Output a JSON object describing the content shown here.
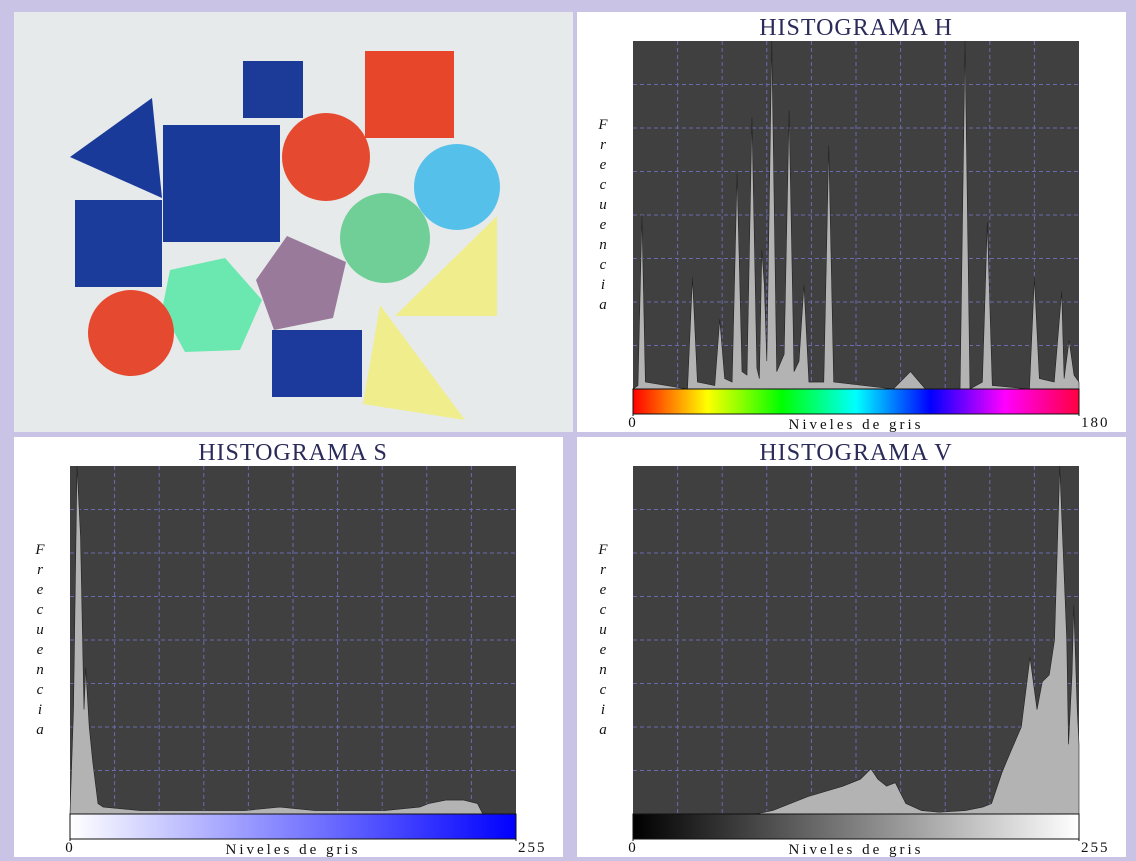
{
  "chart_data": [
    {
      "type": "area",
      "title": "HISTOGRAMA H",
      "x_label": "Niveles de gris",
      "y_label": "Frecuencia",
      "x": [
        0,
        2,
        3.6,
        5,
        22,
        24,
        26,
        33,
        35,
        37,
        40,
        42,
        44,
        46,
        48,
        50,
        51,
        52,
        53,
        54,
        56,
        58,
        61,
        63,
        65,
        67,
        69,
        71,
        77,
        79,
        81,
        105,
        112,
        118,
        132,
        134,
        136,
        141,
        143,
        145,
        160,
        162,
        164,
        170,
        173,
        174,
        176,
        178,
        180
      ],
      "values": [
        0,
        1,
        50,
        2,
        0,
        32,
        2,
        1,
        20,
        3,
        2,
        62,
        5,
        4,
        78,
        6,
        3,
        40,
        30,
        8,
        100,
        5,
        10,
        80,
        5,
        8,
        30,
        2,
        2,
        70,
        2,
        0,
        5,
        0,
        0,
        100,
        0,
        2,
        48,
        1,
        0,
        32,
        3,
        2,
        28,
        3,
        14,
        4,
        2
      ],
      "xlim": [
        0,
        180
      ],
      "xticks": [
        0,
        180
      ],
      "ylim": [
        0,
        100
      ],
      "grid": true,
      "color": "#b3b3b3",
      "background": "#404040",
      "colorbar": [
        "#ff0000",
        "#ffff00",
        "#00ff00",
        "#00ffff",
        "#0000ff",
        "#ff00ff",
        "#ff0040"
      ]
    },
    {
      "type": "area",
      "title": "HISTOGRAMA S",
      "x_label": "Niveles de gris",
      "y_label": "Frecuencia",
      "x": [
        0,
        2,
        4,
        6,
        8,
        9,
        11,
        13,
        16,
        19,
        40,
        60,
        80,
        100,
        120,
        140,
        160,
        180,
        200,
        205,
        215,
        225,
        233,
        236,
        255
      ],
      "values": [
        0,
        30,
        100,
        80,
        30,
        42,
        25,
        15,
        3,
        2,
        1,
        1,
        1,
        1,
        2,
        1,
        1,
        1,
        2,
        3,
        4,
        4,
        3,
        0,
        0
      ],
      "xlim": [
        0,
        255
      ],
      "xticks": [
        0,
        255
      ],
      "ylim": [
        0,
        100
      ],
      "grid": true,
      "color": "#b3b3b3",
      "background": "#404040",
      "colorbar": [
        "#ffffff",
        "#0000ff"
      ]
    },
    {
      "type": "area",
      "title": "HISTOGRAMA V",
      "x_label": "Niveles de gris",
      "y_label": "Frecuencia",
      "x": [
        0,
        70,
        80,
        100,
        120,
        130,
        136,
        140,
        145,
        150,
        156,
        165,
        175,
        190,
        200,
        205,
        211,
        216,
        222,
        227,
        231,
        234,
        238,
        241,
        244,
        246,
        248,
        249,
        251,
        252,
        254,
        255
      ],
      "values": [
        0,
        0,
        1,
        5,
        8,
        10,
        13,
        10,
        8,
        9,
        3,
        1,
        0.5,
        1,
        2,
        3,
        12,
        18,
        25,
        45,
        30,
        38,
        40,
        50,
        100,
        75,
        50,
        20,
        40,
        60,
        30,
        20
      ],
      "xlim": [
        0,
        255
      ],
      "xticks": [
        0,
        255
      ],
      "ylim": [
        0,
        100
      ],
      "grid": true,
      "color": "#b3b3b3",
      "background": "#404040",
      "colorbar": [
        "#000000",
        "#ffffff"
      ]
    }
  ]
}
